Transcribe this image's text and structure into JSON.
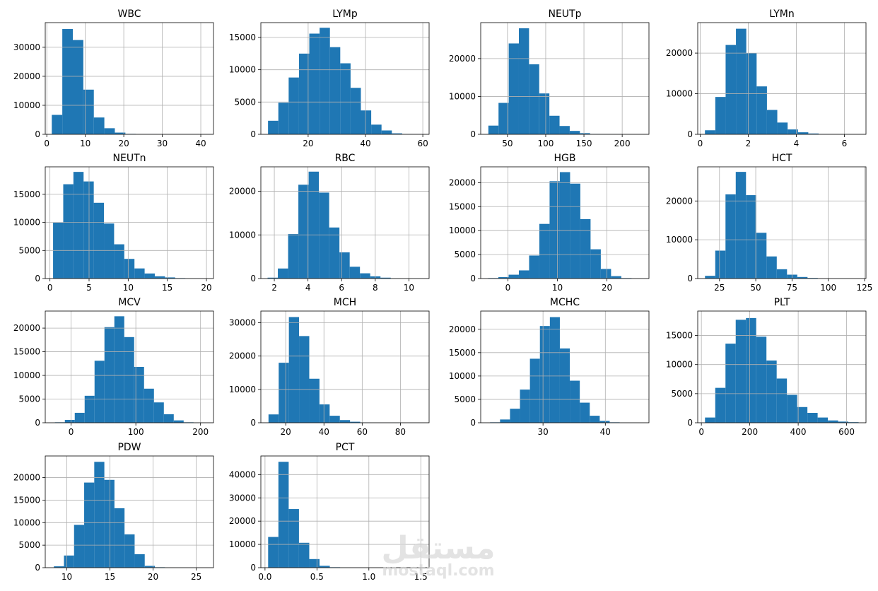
{
  "chart_data": [
    {
      "type": "histogram",
      "title": "WBC",
      "bins": [
        1.3,
        4.03,
        6.76,
        9.49,
        12.22,
        14.95,
        17.68,
        20.41,
        23.14,
        25.87,
        28.6,
        31.33,
        34.06,
        36.79,
        39.52,
        42.25
      ],
      "counts": [
        6700,
        36300,
        32500,
        15400,
        5800,
        2100,
        600,
        150,
        50,
        20,
        10,
        5,
        2,
        1,
        1
      ],
      "color": "#1f77b4",
      "xlim": [
        -0.4,
        43.3
      ],
      "ylim": [
        0,
        38500
      ],
      "xticks": [
        0,
        10,
        20,
        30,
        40
      ],
      "yticks": [
        0,
        10000,
        20000,
        30000
      ],
      "grid": true
    },
    {
      "type": "histogram",
      "title": "LYMp",
      "bins": [
        6,
        9.6,
        13.2,
        16.8,
        20.4,
        24,
        27.6,
        31.2,
        34.8,
        38.4,
        42,
        45.6,
        49.2,
        52.8,
        56.4,
        60
      ],
      "counts": [
        2100,
        4900,
        8800,
        12500,
        15600,
        16500,
        13500,
        11000,
        7200,
        3700,
        1500,
        600,
        150,
        50,
        10
      ],
      "color": "#1f77b4",
      "xlim": [
        3.5,
        62.2
      ],
      "ylim": [
        0,
        17300
      ],
      "xticks": [
        20,
        40,
        60
      ],
      "yticks": [
        0,
        5000,
        10000,
        15000
      ],
      "grid": true
    },
    {
      "type": "histogram",
      "title": "NEUTp",
      "bins": [
        25,
        38.3,
        51.6,
        64.9,
        78.2,
        91.5,
        104.8,
        118.1,
        131.4,
        144.7,
        158,
        171.3,
        184.6,
        197.9,
        211.2,
        224.5
      ],
      "counts": [
        2300,
        8300,
        24000,
        28000,
        18500,
        10800,
        4900,
        2200,
        900,
        300,
        100,
        40,
        10,
        5,
        2
      ],
      "color": "#1f77b4",
      "xlim": [
        15,
        235
      ],
      "ylim": [
        0,
        29500
      ],
      "xticks": [
        50,
        100,
        150,
        200
      ],
      "yticks": [
        0,
        10000,
        20000
      ],
      "grid": true
    },
    {
      "type": "histogram",
      "title": "LYMn",
      "bins": [
        0.2,
        0.63,
        1.06,
        1.49,
        1.92,
        2.35,
        2.78,
        3.21,
        3.64,
        4.07,
        4.5,
        4.93,
        5.36,
        5.79,
        6.22,
        6.65
      ],
      "counts": [
        1000,
        9200,
        22000,
        26000,
        20000,
        11800,
        6000,
        2900,
        1200,
        500,
        200,
        80,
        30,
        10,
        5
      ],
      "color": "#1f77b4",
      "xlim": [
        -0.1,
        6.9
      ],
      "ylim": [
        0,
        27500
      ],
      "xticks": [
        0,
        2,
        4,
        6
      ],
      "yticks": [
        0,
        10000,
        20000
      ],
      "grid": true
    },
    {
      "type": "histogram",
      "title": "NEUTn",
      "bins": [
        0.4,
        1.7,
        3,
        4.3,
        5.6,
        6.9,
        8.2,
        9.5,
        10.8,
        12.1,
        13.4,
        14.7,
        16,
        17.3,
        18.6,
        19.9
      ],
      "counts": [
        10000,
        16800,
        19000,
        17300,
        13500,
        9800,
        6100,
        3500,
        1800,
        900,
        400,
        200,
        80,
        30,
        10
      ],
      "color": "#1f77b4",
      "xlim": [
        -0.6,
        20.9
      ],
      "ylim": [
        0,
        19900
      ],
      "xticks": [
        0,
        5,
        10,
        15,
        20
      ],
      "yticks": [
        0,
        5000,
        10000,
        15000
      ],
      "grid": true
    },
    {
      "type": "histogram",
      "title": "RBC",
      "bins": [
        1.6,
        2.21,
        2.82,
        3.43,
        4.04,
        4.65,
        5.26,
        5.87,
        6.48,
        7.09,
        7.7,
        8.31,
        8.92,
        9.53,
        10.14,
        10.75
      ],
      "counts": [
        200,
        2300,
        10200,
        21500,
        24500,
        19700,
        11700,
        6000,
        2700,
        1200,
        500,
        200,
        80,
        30,
        10
      ],
      "color": "#1f77b4",
      "xlim": [
        1.2,
        11.2
      ],
      "ylim": [
        0,
        25600
      ],
      "xticks": [
        2,
        4,
        6,
        8,
        10
      ],
      "yticks": [
        0,
        10000,
        20000
      ],
      "grid": true
    },
    {
      "type": "histogram",
      "title": "HGB",
      "bins": [
        -4,
        -1.93,
        0.14,
        2.21,
        4.28,
        6.35,
        8.42,
        10.49,
        12.56,
        14.63,
        16.7,
        18.77,
        20.84,
        22.91,
        24.98,
        27.05
      ],
      "counts": [
        100,
        300,
        800,
        1700,
        4800,
        11400,
        20300,
        22200,
        19800,
        12400,
        6100,
        2000,
        500,
        100,
        20
      ],
      "color": "#1f77b4",
      "xlim": [
        -5.5,
        28.5
      ],
      "ylim": [
        0,
        23300
      ],
      "xticks": [
        0,
        10,
        20
      ],
      "yticks": [
        0,
        5000,
        10000,
        15000,
        20000
      ],
      "grid": true
    },
    {
      "type": "histogram",
      "title": "HCT",
      "bins": [
        15,
        22.07,
        29.14,
        36.21,
        43.28,
        50.35,
        57.42,
        64.49,
        71.56,
        78.63,
        85.7,
        92.77,
        99.84,
        106.91,
        113.98,
        121.05
      ],
      "counts": [
        700,
        7200,
        21700,
        27500,
        21500,
        11800,
        5700,
        2400,
        1000,
        400,
        150,
        50,
        20,
        10,
        5
      ],
      "color": "#1f77b4",
      "xlim": [
        10,
        126
      ],
      "ylim": [
        0,
        28800
      ],
      "xticks": [
        25,
        50,
        75,
        100,
        125
      ],
      "yticks": [
        0,
        10000,
        20000
      ],
      "grid": true
    },
    {
      "type": "histogram",
      "title": "MCV",
      "bins": [
        -25,
        -9.7,
        5.6,
        20.9,
        36.2,
        51.5,
        66.8,
        82.1,
        97.4,
        112.7,
        128,
        143.3,
        158.6,
        173.9,
        189.2,
        204.5
      ],
      "counts": [
        100,
        600,
        2100,
        5700,
        13100,
        20200,
        22500,
        18100,
        11800,
        7200,
        4300,
        1800,
        500,
        100,
        20
      ],
      "color": "#1f77b4",
      "xlim": [
        -40,
        220
      ],
      "ylim": [
        0,
        23600
      ],
      "xticks": [
        0,
        100,
        200
      ],
      "yticks": [
        0,
        5000,
        10000,
        15000,
        20000
      ],
      "grid": true
    },
    {
      "type": "histogram",
      "title": "MCH",
      "bins": [
        11,
        16.33,
        21.66,
        26.99,
        32.32,
        37.65,
        42.98,
        48.31,
        53.64,
        58.97,
        64.3,
        69.63,
        74.96,
        80.29,
        85.62,
        90.95
      ],
      "counts": [
        2500,
        18000,
        31700,
        26000,
        13200,
        5500,
        2100,
        800,
        300,
        100,
        40,
        20,
        10,
        5,
        2
      ],
      "color": "#1f77b4",
      "xlim": [
        7,
        95
      ],
      "ylim": [
        0,
        33500
      ],
      "xticks": [
        20,
        40,
        60,
        80
      ],
      "yticks": [
        0,
        10000,
        20000,
        30000
      ],
      "grid": true
    },
    {
      "type": "histogram",
      "title": "MCHC",
      "bins": [
        21.5,
        23.1,
        24.7,
        26.3,
        27.9,
        29.5,
        31.1,
        32.7,
        34.3,
        35.9,
        37.5,
        39.1,
        40.7,
        42.3,
        43.9,
        45.5
      ],
      "counts": [
        100,
        700,
        3000,
        7100,
        13700,
        20700,
        22600,
        15900,
        9000,
        4300,
        1500,
        400,
        100,
        30,
        10
      ],
      "color": "#1f77b4",
      "xlim": [
        20,
        47
      ],
      "ylim": [
        0,
        23900
      ],
      "xticks": [
        30,
        40
      ],
      "yticks": [
        0,
        5000,
        10000,
        15000,
        20000
      ],
      "grid": true
    },
    {
      "type": "histogram",
      "title": "PLT",
      "bins": [
        15,
        57.3,
        99.6,
        141.9,
        184.2,
        226.5,
        268.8,
        311.1,
        353.4,
        395.7,
        438,
        480.3,
        522.6,
        564.9,
        607.2,
        649.5
      ],
      "counts": [
        900,
        6000,
        13600,
        17700,
        18000,
        14800,
        10700,
        7600,
        4800,
        2700,
        1700,
        900,
        400,
        200,
        100
      ],
      "color": "#1f77b4",
      "xlim": [
        -15,
        680
      ],
      "ylim": [
        0,
        19200
      ],
      "xticks": [
        0,
        200,
        400,
        600
      ],
      "yticks": [
        0,
        5000,
        10000,
        15000
      ],
      "grid": true
    },
    {
      "type": "histogram",
      "title": "PDW",
      "bins": [
        8.5,
        9.67,
        10.84,
        12.01,
        13.18,
        14.35,
        15.52,
        16.69,
        17.86,
        19.03,
        20.2,
        21.37,
        22.54,
        23.71,
        24.88,
        26.05
      ],
      "counts": [
        300,
        2700,
        9500,
        18900,
        23500,
        19500,
        13200,
        7400,
        3000,
        400,
        100,
        30,
        10,
        5,
        2
      ],
      "color": "#1f77b4",
      "xlim": [
        7.5,
        27
      ],
      "ylim": [
        0,
        24800
      ],
      "xticks": [
        10,
        15,
        20,
        25
      ],
      "yticks": [
        0,
        5000,
        10000,
        15000,
        20000
      ],
      "grid": true
    },
    {
      "type": "histogram",
      "title": "PCT",
      "bins": [
        0.03,
        0.129,
        0.228,
        0.327,
        0.426,
        0.525,
        0.624,
        0.723,
        0.822,
        0.921,
        1.02,
        1.119,
        1.218,
        1.317,
        1.416,
        1.515
      ],
      "counts": [
        13200,
        45500,
        25200,
        10700,
        3700,
        800,
        200,
        80,
        30,
        10,
        5,
        3,
        2,
        1,
        1
      ],
      "color": "#1f77b4",
      "xlim": [
        -0.04,
        1.58
      ],
      "ylim": [
        0,
        48000
      ],
      "xticks": [
        {
          "value": 0,
          "label": "0.0"
        },
        0.5,
        {
          "value": 1,
          "label": "1.0"
        },
        1.5
      ],
      "yticks": [
        0,
        10000,
        20000,
        30000,
        40000
      ],
      "grid": true
    }
  ],
  "watermark": {
    "arabic": "مستقل",
    "latin": "mostaql.com"
  }
}
